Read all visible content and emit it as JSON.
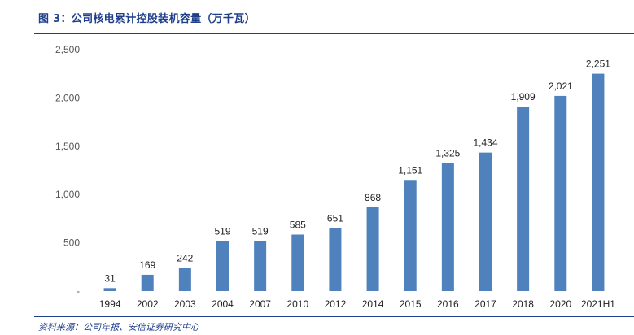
{
  "figure": {
    "title": "图 3：公司核电累计控股装机容量（万千瓦）",
    "source": "资料来源：公司年报、安信证券研究中心"
  },
  "colors": {
    "bar": "#4f81bd",
    "rule": "#1f3f8c",
    "title": "#1f3f8c"
  },
  "chart_data": {
    "type": "bar",
    "title": "",
    "xlabel": "",
    "ylabel": "",
    "categories": [
      "1994",
      "2002",
      "2003",
      "2004",
      "2007",
      "2010",
      "2012",
      "2014",
      "2015",
      "2016",
      "2017",
      "2018",
      "2020",
      "2021H1"
    ],
    "values": [
      31,
      169,
      242,
      519,
      519,
      585,
      651,
      868,
      1151,
      1325,
      1434,
      1909,
      2021,
      2251
    ],
    "data_labels": [
      "31",
      "169",
      "242",
      "519",
      "519",
      "585",
      "651",
      "868",
      "1,151",
      "1,325",
      "1,434",
      "1,909",
      "2,021",
      "2,251"
    ],
    "ylim": [
      0,
      2500
    ],
    "y_ticks": [
      0,
      500,
      1000,
      1500,
      2000,
      2500
    ],
    "y_tick_labels": [
      "-",
      "500",
      "1,000",
      "1,500",
      "2,000",
      "2,500"
    ],
    "grid": false,
    "legend": "none"
  }
}
